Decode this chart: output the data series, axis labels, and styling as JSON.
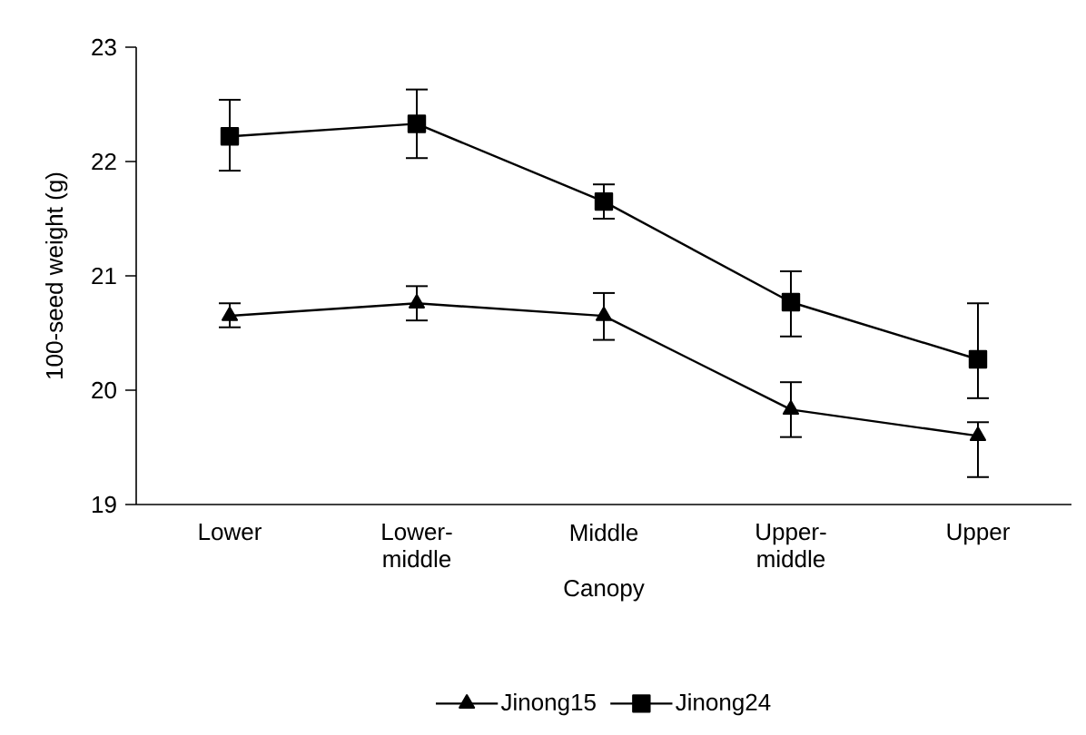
{
  "chart_data": {
    "type": "line",
    "xlabel": "Canopy",
    "ylabel": "100-seed weight (g)",
    "categories": [
      "Lower",
      "Lower-middle",
      "Middle",
      "Upper-middle",
      "Upper"
    ],
    "ylim": [
      19,
      23
    ],
    "yticks": [
      19,
      20,
      21,
      22,
      23
    ],
    "legend": "bottom",
    "line_style": "solid",
    "series": [
      {
        "name": "Jinong15",
        "color": "#000000",
        "marker": "triangle",
        "values": [
          20.65,
          20.76,
          20.65,
          19.83,
          19.6
        ],
        "errors": [
          [
            20.55,
            20.76
          ],
          [
            20.61,
            20.91
          ],
          [
            20.44,
            20.85
          ],
          [
            19.59,
            20.07
          ],
          [
            19.24,
            19.72
          ]
        ]
      },
      {
        "name": "Jinong24",
        "color": "#000000",
        "marker": "square",
        "values": [
          22.22,
          22.33,
          21.65,
          20.77,
          20.27
        ],
        "errors": [
          [
            21.92,
            22.54
          ],
          [
            22.03,
            22.63
          ],
          [
            21.5,
            21.8
          ],
          [
            20.47,
            21.04
          ],
          [
            19.93,
            20.76
          ]
        ]
      }
    ]
  }
}
